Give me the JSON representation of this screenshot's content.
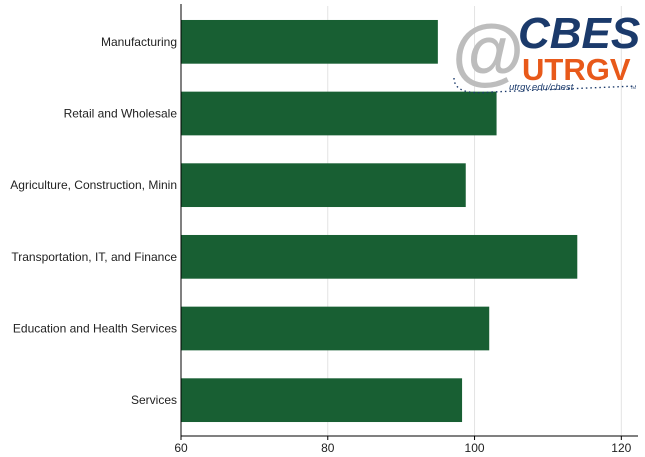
{
  "chart_data": {
    "type": "bar",
    "orientation": "horizontal",
    "categories": [
      "Manufacturing",
      "Retail and Wholesale",
      "Agriculture, Construction, Minin",
      "Transportation, IT, and Finance",
      "Education and Health Services",
      "Services"
    ],
    "values": [
      95,
      103,
      98.8,
      114,
      102,
      98.3
    ],
    "xlim": [
      60,
      122
    ],
    "xticks": [
      "60",
      "80",
      "100",
      "120"
    ],
    "xtick_values": [
      60,
      80,
      100,
      120
    ],
    "grid": true,
    "bar_color": "#185f33"
  },
  "logo": {
    "main_text": "CBESt",
    "sub_text": "UTRGV",
    "url_text": "utrgv.edu/cbest",
    "at_symbol": "@",
    "tm_mark": "TM",
    "colors": {
      "main": "#1b3a6b",
      "sub": "#e8591a",
      "at": "#bdbdbd",
      "url": "#1b3a6b"
    }
  }
}
